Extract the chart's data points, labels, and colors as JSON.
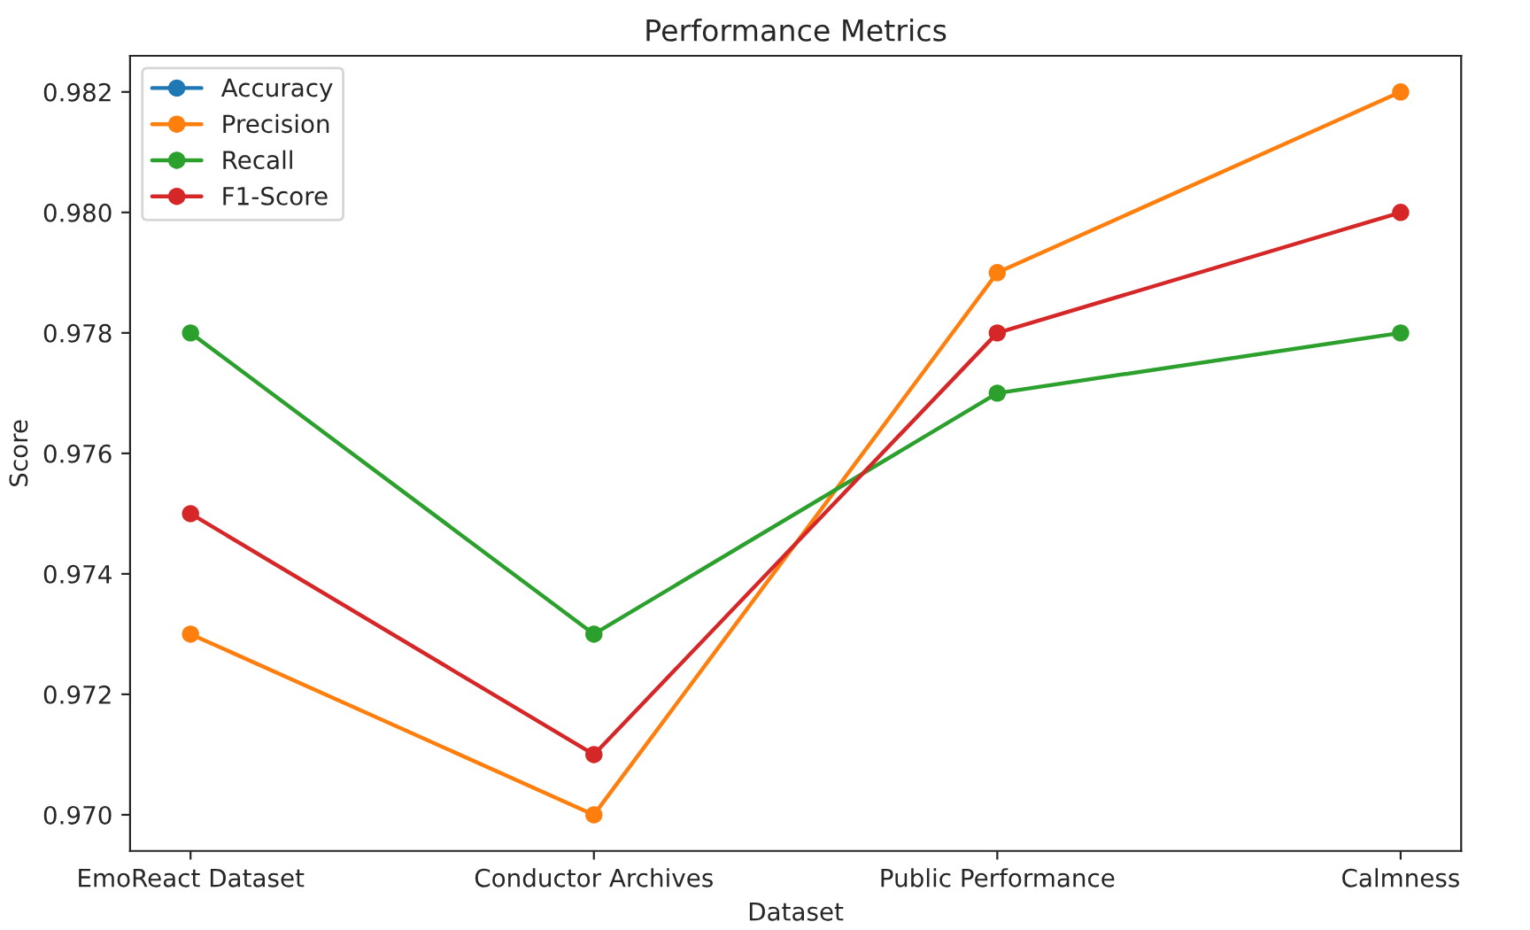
{
  "chart_data": {
    "type": "line",
    "title": "Performance Metrics",
    "xlabel": "Dataset",
    "ylabel": "Score",
    "categories": [
      "EmoReact Dataset",
      "Conductor Archives",
      "Public Performance",
      "Calmness"
    ],
    "series": [
      {
        "name": "Accuracy",
        "color": "#1f77b4",
        "values": [
          null,
          null,
          null,
          null
        ]
      },
      {
        "name": "Precision",
        "color": "#ff7f0e",
        "values": [
          0.973,
          0.97,
          0.979,
          0.982
        ]
      },
      {
        "name": "Recall",
        "color": "#2ca02c",
        "values": [
          0.978,
          0.973,
          0.977,
          0.978
        ]
      },
      {
        "name": "F1-Score",
        "color": "#d62728",
        "values": [
          0.975,
          0.971,
          0.978,
          0.98
        ]
      }
    ],
    "ylim": [
      0.9694,
      0.9826
    ],
    "yticks": [
      {
        "value": 0.97,
        "label": "0.970"
      },
      {
        "value": 0.972,
        "label": "0.972"
      },
      {
        "value": 0.974,
        "label": "0.974"
      },
      {
        "value": 0.976,
        "label": "0.976"
      },
      {
        "value": 0.978,
        "label": "0.978"
      },
      {
        "value": 0.98,
        "label": "0.980"
      },
      {
        "value": 0.982,
        "label": "0.982"
      }
    ],
    "marker": "circle",
    "line_style": "solid",
    "legend": "top left",
    "grid": false
  }
}
